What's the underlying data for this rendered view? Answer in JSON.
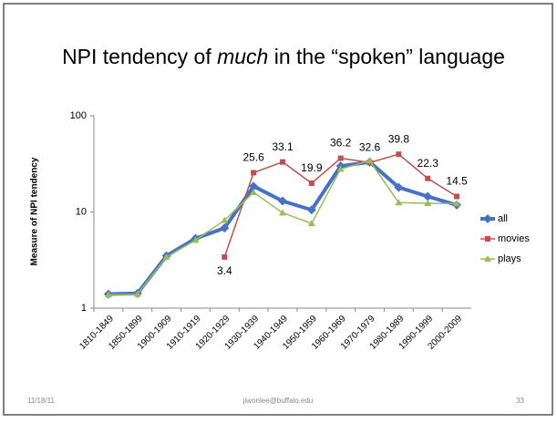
{
  "slide": {
    "title_parts": [
      "NPI tendency of ",
      "much",
      " in the “spoken” language"
    ],
    "footer_date": "11/18/11",
    "footer_email": "jiwonlee@buffalo.edu",
    "page_number": 33
  },
  "chart_data": {
    "type": "line",
    "y_label": "Measure of NPI tendency",
    "log_scale": true,
    "categories": [
      "1810-1849",
      "1850-1899",
      "1900-1909",
      "1910-1919",
      "1920-1929",
      "1930-1939",
      "1940-1949",
      "1950-1959",
      "1960-1969",
      "1970-1979",
      "1980-1989",
      "1990-1999",
      "2000-2009"
    ],
    "ylim": [
      1,
      100
    ],
    "yticks": [
      1,
      10,
      100
    ],
    "legend": "right",
    "series": [
      {
        "name": "all",
        "color": "#4472c4",
        "marker": "diamond",
        "values": [
          1.4,
          1.42,
          3.5,
          5.3,
          6.8,
          18.5,
          13,
          10.5,
          30,
          33,
          18,
          14.5,
          11.8
        ]
      },
      {
        "name": "movies",
        "color": "#c0504d",
        "marker": "square",
        "data_labels": true,
        "values": [
          null,
          null,
          null,
          null,
          3.4,
          25.6,
          33.1,
          19.9,
          36.2,
          32.6,
          39.8,
          22.3,
          14.5
        ]
      },
      {
        "name": "plays",
        "color": "#9bbb59",
        "marker": "triangle",
        "values": [
          1.38,
          1.4,
          3.4,
          5.1,
          8.2,
          16,
          9.8,
          7.6,
          28,
          34,
          12.5,
          12.3,
          12.2
        ]
      }
    ]
  }
}
